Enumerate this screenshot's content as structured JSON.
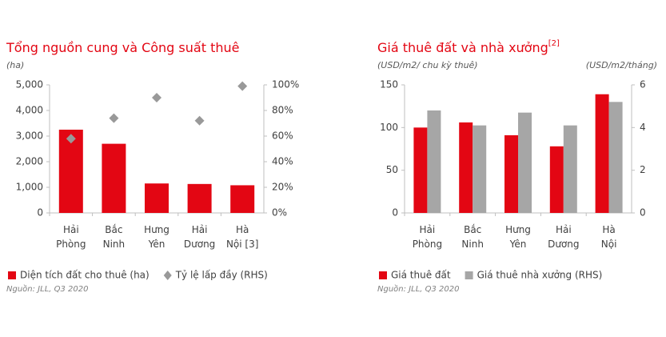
{
  "chart_data": [
    {
      "type": "combo",
      "title": "Tổng nguồn cung và Công suất thuê",
      "subtitle": "(ha)",
      "categories": [
        "Hải Phòng",
        "Bắc Ninh",
        "Hưng Yên",
        "Hải Dương",
        "Hà Nội [3]"
      ],
      "series": [
        {
          "name": "Diện tích đất cho thuê (ha)",
          "color": "#e30613",
          "kind": "bar",
          "values": [
            3250,
            2700,
            1150,
            1130,
            1080
          ]
        },
        {
          "name": "Tỷ lệ lấp đầy (RHS)",
          "color": "#999999",
          "kind": "scatter",
          "axis": "y2",
          "values": [
            58,
            74,
            90,
            72,
            99
          ]
        }
      ],
      "ylim": [
        0,
        5000
      ],
      "yticks": [
        0,
        {
          "value": 1000,
          "label": "1,000"
        },
        {
          "value": 2000,
          "label": "2,000"
        },
        {
          "value": 3000,
          "label": "3,000"
        },
        {
          "value": 4000,
          "label": "4,000"
        },
        {
          "value": 5000,
          "label": "5,000"
        }
      ],
      "y2lim": [
        0,
        100
      ],
      "y2ticks": [
        {
          "value": 0,
          "label": "0%"
        },
        {
          "value": 20,
          "label": "20%"
        },
        {
          "value": 40,
          "label": "40%"
        },
        {
          "value": 60,
          "label": "60%"
        },
        {
          "value": 80,
          "label": "80%"
        },
        {
          "value": 100,
          "label": "100%"
        }
      ],
      "source": "Nguồn: JLL, Q3 2020"
    },
    {
      "type": "combo",
      "title": "Giá thuê đất và nhà xưởng",
      "title_note": "[2]",
      "subtitle": "(USD/m2/ chu kỳ thuê)",
      "y2_label": "(USD/m2/tháng)",
      "categories": [
        "Hải Phòng",
        "Bắc Ninh",
        "Hưng Yên",
        "Hải Dương",
        "Hà Nội"
      ],
      "series": [
        {
          "name": "Giá thuê đất",
          "color": "#e30613",
          "kind": "bar",
          "values": [
            100,
            106,
            91,
            78,
            139
          ]
        },
        {
          "name": "Giá thuê nhà xưởng (RHS)",
          "color": "#a6a6a6",
          "kind": "bar",
          "axis": "y2",
          "values": [
            4.8,
            4.1,
            4.7,
            4.1,
            5.2
          ]
        }
      ],
      "ylim": [
        0,
        150
      ],
      "yticks": [
        0,
        50,
        100,
        150
      ],
      "y2lim": [
        0,
        6
      ],
      "y2ticks": [
        0,
        2,
        4,
        6
      ],
      "source": "Nguồn: JLL, Q3 2020"
    }
  ]
}
